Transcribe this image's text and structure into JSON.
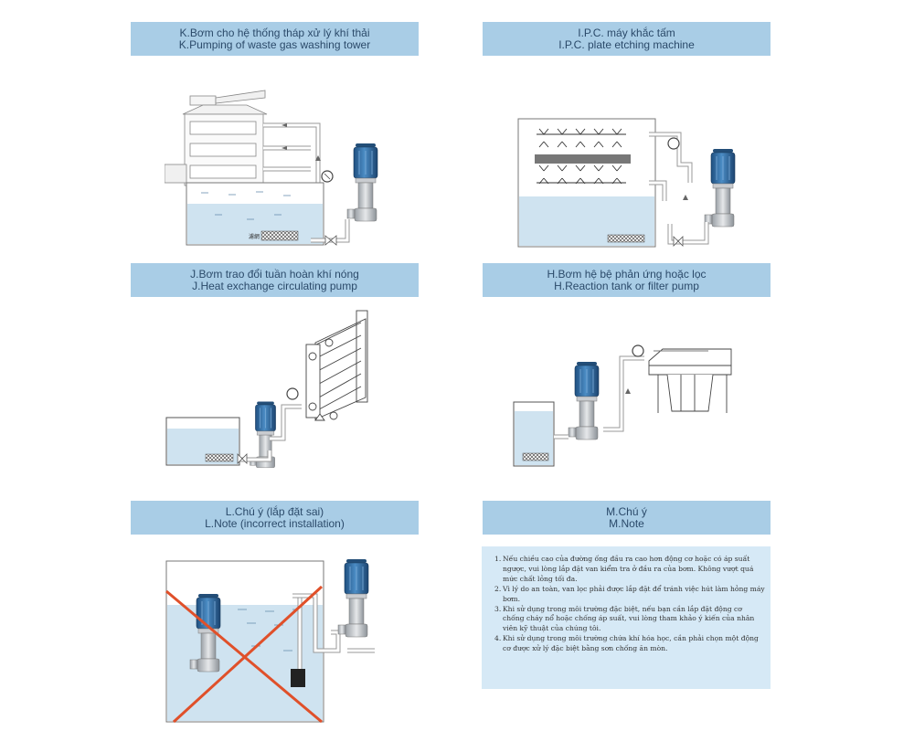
{
  "panels": {
    "k": {
      "vi": "K.Bơm cho hệ thống tháp xử lý khí thải",
      "en": "K.Pumping of waste gas washing tower",
      "tank_label": "濾網"
    },
    "i": {
      "vi": "I.P.C. máy khắc tấm",
      "en": "I.P.C. plate etching machine"
    },
    "j": {
      "vi": "J.Bơm trao đổi tuần hoàn khí nóng",
      "en": "J.Heat exchange circulating pump"
    },
    "h": {
      "vi": "H.Bơm hệ bệ phản ứng hoặc lọc",
      "en": "H.Reaction tank or filter pump"
    },
    "l": {
      "vi": "L.Chú ý (lắp đặt sai)",
      "en": "L.Note (incorrect installation)"
    },
    "m": {
      "vi": "M.Chú ý",
      "en": "M.Note"
    }
  },
  "notes": [
    {
      "num": "1.",
      "text": "Nếu chiều cao của đường ống đầu ra cao hơn động cơ hoặc có áp suất ngược, vui lòng lắp đặt van kiểm tra ở đầu ra của bơm. Không vượt quá mức chất lỏng tối đa."
    },
    {
      "num": "2.",
      "text": "Vì lý do an toàn, van lọc phải được lắp đặt để tránh việc hút làm hỏng máy bơm."
    },
    {
      "num": "3.",
      "text": "Khi sử dụng trong môi trường đặc biệt, nếu bạn cần lắp đặt động cơ chống cháy nổ hoặc chống áp suất, vui lòng tham khảo ý kiến của nhân viên kỹ thuật của chúng tôi."
    },
    {
      "num": "4.",
      "text": "Khi sử dụng trong môi trường chứa khí hóa học, cần phải chọn một động cơ được xử lý đặc biệt bằng sơn chống ăn mòn."
    }
  ],
  "colors": {
    "header_bg": "#a9cde6",
    "header_text": "#2b4a6a",
    "note_bg": "#d6e9f6",
    "water": "#cfe3f0",
    "motor": "#2f6fa8",
    "cross": "#e0502a"
  }
}
